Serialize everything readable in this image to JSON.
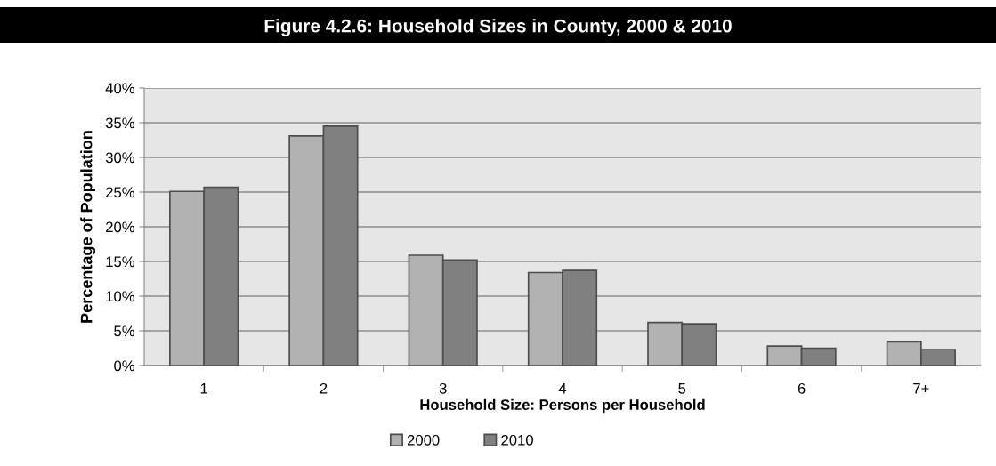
{
  "chart_data": {
    "type": "bar",
    "title": "Figure 4.2.6: Household Sizes in County, 2000 & 2010",
    "xlabel": "Household Size: Persons per Household",
    "ylabel": "Percentage of Population",
    "categories": [
      "1",
      "2",
      "3",
      "4",
      "5",
      "6",
      "7+"
    ],
    "series": [
      {
        "name": "2000",
        "color": "#b2b2b2",
        "values": [
          25.1,
          33.1,
          15.9,
          13.4,
          6.2,
          2.8,
          3.4
        ]
      },
      {
        "name": "2010",
        "color": "#808080",
        "values": [
          25.7,
          34.5,
          15.2,
          13.7,
          6.0,
          2.5,
          2.3
        ]
      }
    ],
    "ylim": [
      0,
      40
    ],
    "yticks": [
      {
        "value": 0,
        "label": "0%"
      },
      {
        "value": 5,
        "label": "5%"
      },
      {
        "value": 10,
        "label": "10%"
      },
      {
        "value": 15,
        "label": "15%"
      },
      {
        "value": 20,
        "label": "20%"
      },
      {
        "value": 25,
        "label": "25%"
      },
      {
        "value": 30,
        "label": "30%"
      },
      {
        "value": 35,
        "label": "35%"
      },
      {
        "value": 40,
        "label": "40%"
      }
    ],
    "grid": "y",
    "legend": "bottom"
  }
}
